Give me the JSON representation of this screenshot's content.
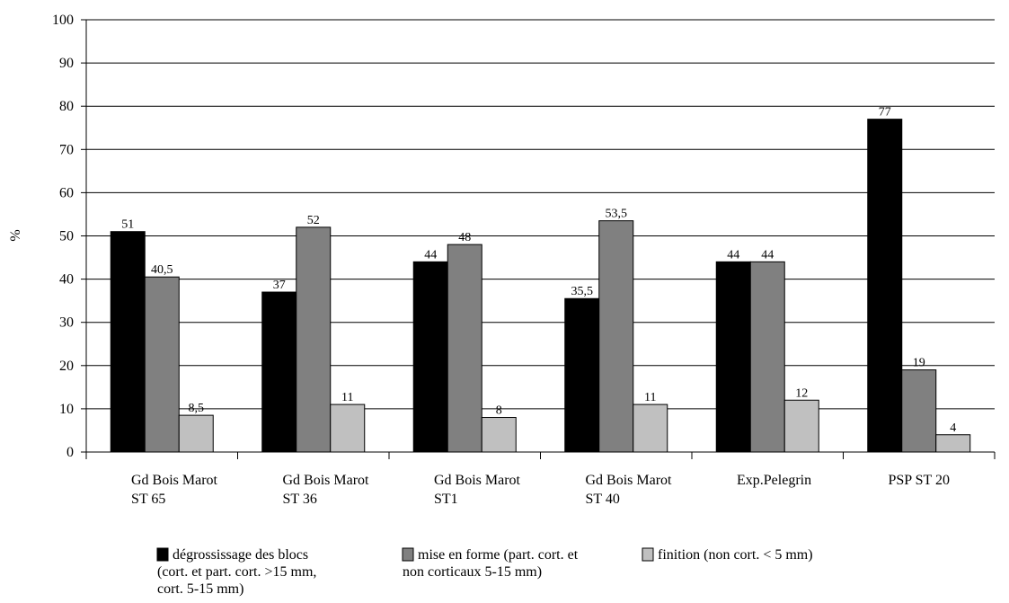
{
  "chart_data": {
    "type": "bar",
    "ylabel": "%",
    "ylim": [
      0,
      100
    ],
    "yticks": [
      0,
      10,
      20,
      30,
      40,
      50,
      60,
      70,
      80,
      90,
      100
    ],
    "grid": true,
    "categories": [
      [
        "Gd Bois Marot",
        "ST 65"
      ],
      [
        "Gd Bois Marot",
        "ST 36"
      ],
      [
        "Gd Bois Marot",
        "ST1"
      ],
      [
        "Gd Bois Marot",
        "ST 40"
      ],
      [
        "Exp.Pelegrin"
      ],
      [
        "PSP ST 20"
      ]
    ],
    "series": [
      {
        "name": [
          "dégrossissage des blocs",
          "(cort. et part. cort. >15 mm,",
          "cort. 5-15 mm)"
        ],
        "color": "#000000",
        "values": [
          51,
          37,
          44,
          35.5,
          44,
          77
        ],
        "labels": [
          "51",
          "37",
          "44",
          "35,5",
          "44",
          "77"
        ]
      },
      {
        "name": [
          "mise en forme (part. cort. et",
          "non corticaux 5-15 mm)"
        ],
        "color": "#808080",
        "values": [
          40.5,
          52,
          48,
          53.5,
          44,
          19
        ],
        "labels": [
          "40,5",
          "52",
          "48",
          "53,5",
          "44",
          "19"
        ]
      },
      {
        "name": [
          "finition (non cort. < 5 mm)"
        ],
        "color": "#c0c0c0",
        "values": [
          8.5,
          11,
          8,
          11,
          12,
          4
        ],
        "labels": [
          "8,5",
          "11",
          "8",
          "11",
          "12",
          "4"
        ]
      }
    ],
    "legend": "bottom"
  }
}
